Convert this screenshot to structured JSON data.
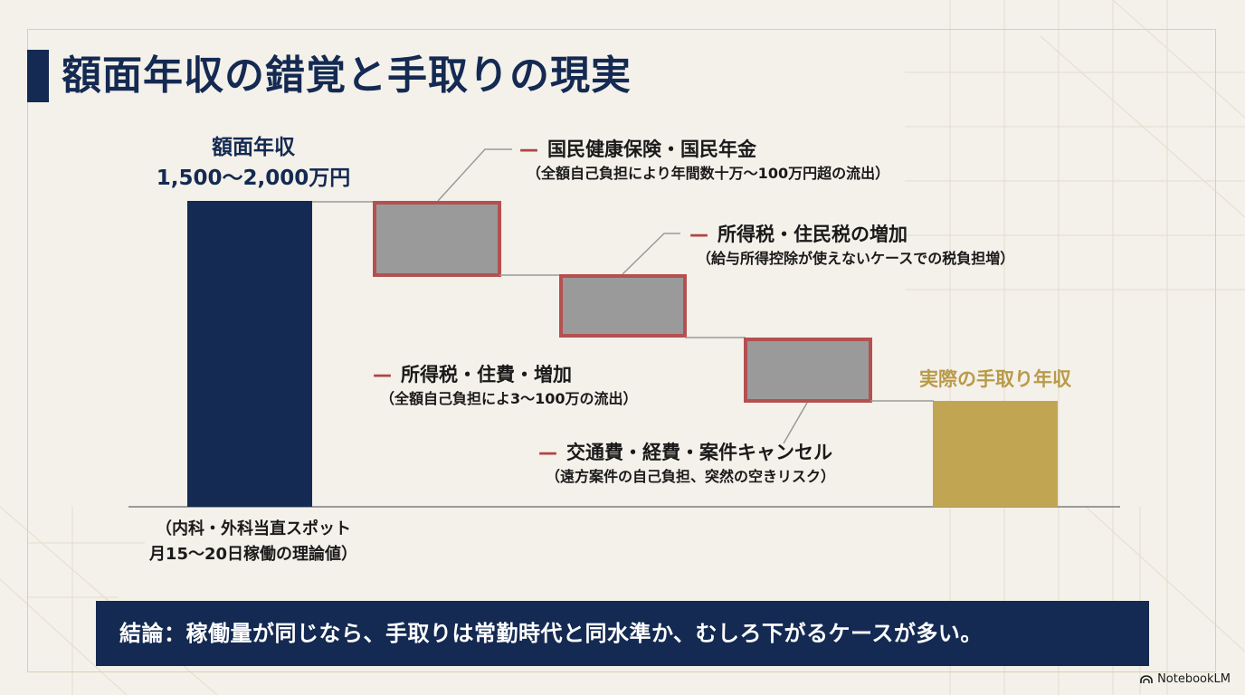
{
  "title": "額面年収の錯覚と手取りの現実",
  "gross": {
    "label_line1": "額面年収",
    "label_line2": "1,500〜2,000万円",
    "note_line1": "（内科・外科当直スポット",
    "note_line2": "月15〜20日稼働の理論値）"
  },
  "net": {
    "label": "実際の手取り年収"
  },
  "deductions": [
    {
      "title": "国民健康保険・国民年金",
      "sub": "（全額自己負担により年間数十万〜100万円超の流出）"
    },
    {
      "title": "所得税・住民税の増加",
      "sub": "（給与所得控除が使えないケースでの税負担増）"
    },
    {
      "title": "所得税・住費・増加",
      "sub": "（全額自己負担によ3〜100万の流出）"
    },
    {
      "title": "交通費・経費・案件キャンセル",
      "sub": "（遠方案件の自己負担、突然の空きリスク）"
    }
  ],
  "conclusion": "結論：稼働量が同じなら、手取りは常勤時代と同水準か、むしろ下がるケースが多い。",
  "brand": "NotebookLM",
  "colors": {
    "navy": "#142a52",
    "gold": "#c2a553",
    "deduction_fill": "#9a9a9a",
    "deduction_border": "#b55050",
    "background": "#f4f1ea"
  }
}
